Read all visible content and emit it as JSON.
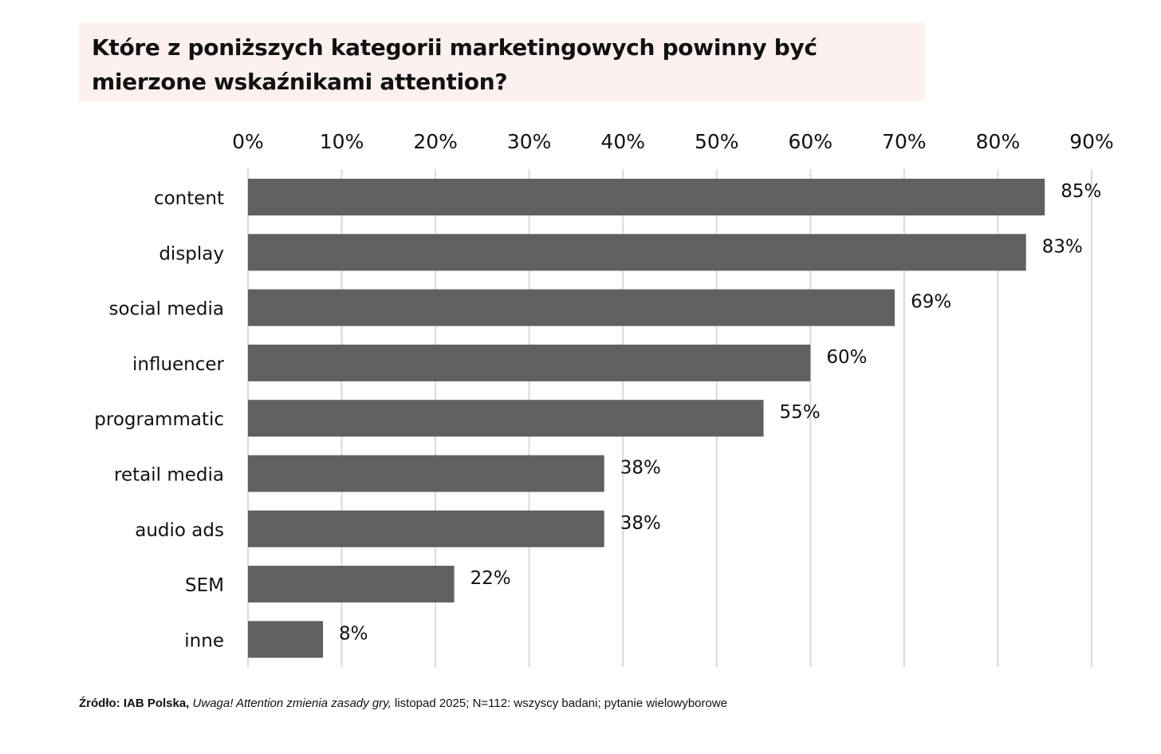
{
  "title": "Które z poniższych kategorii marketingowych powinny być mierzone wskaźnikami attention?",
  "source": {
    "prefix": "Źródło: IAB Polska,",
    "publication": "Uwaga! Attention zmienia zasady gry,",
    "details": "listopad 2025; N=112: wszyscy badani; pytanie wielowyborowe"
  },
  "colors": {
    "bar": "#606060",
    "grid": "#d9d9d9",
    "title_bg": "#fdf1ef"
  },
  "chart_data": {
    "type": "bar",
    "orientation": "horizontal",
    "categories": [
      "content",
      "display",
      "social media",
      "influencer",
      "programmatic",
      "retail media",
      "audio ads",
      "SEM",
      "inne"
    ],
    "values": [
      85,
      83,
      69,
      60,
      55,
      38,
      38,
      22,
      8
    ],
    "value_labels": [
      "85%",
      "83%",
      "69%",
      "60%",
      "55%",
      "38%",
      "38%",
      "22%",
      "8%"
    ],
    "xlim": [
      0,
      90
    ],
    "x_ticks": [
      0,
      10,
      20,
      30,
      40,
      50,
      60,
      70,
      80,
      90
    ],
    "x_tick_labels": [
      "0%",
      "10%",
      "20%",
      "30%",
      "40%",
      "50%",
      "60%",
      "70%",
      "80%",
      "90%"
    ],
    "x_axis_position": "top",
    "grid": "vertical",
    "legend": "none"
  }
}
